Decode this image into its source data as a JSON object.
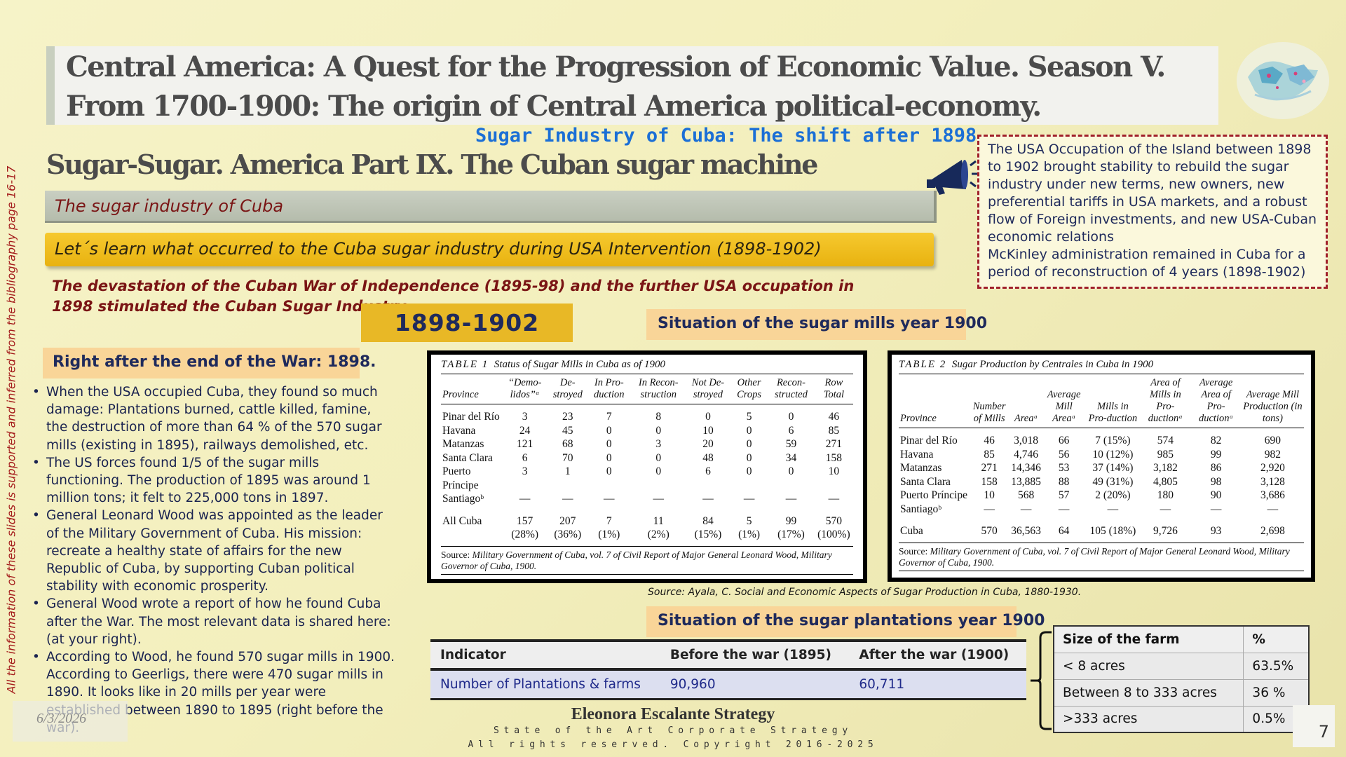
{
  "title": {
    "line1": "Central America:  A Quest for the Progression of  Economic Value. Season V.",
    "line2": "From 1700-1900: The origin of  Central America political-economy."
  },
  "subtitle_blue": "Sugar Industry of Cuba: The shift after 1898",
  "section_title": "Sugar-Sugar. America Part IX. The Cuban sugar machine",
  "topic_bar": "The sugar industry of Cuba",
  "learn_bar": "Let´s learn what occurred to the Cuba sugar industry during USA Intervention (1898-1902)",
  "devastation": "The devastation of the Cuban War of Independence (1895-98) and the further USA occupation in 1898 stimulated the Cuban Sugar Industry.",
  "period_label": "1898-1902",
  "mills_label": "Situation of the sugar mills year 1900",
  "usa_box": {
    "p1": "The USA Occupation of the Island between 1898 to 1902 brought stability to rebuild the sugar industry under new terms, new owners, new preferential tariffs in USA markets, and a robust flow of Foreign investments, and new USA-Cuban economic relations",
    "p2": "McKinley administration remained in Cuba for a period of reconstruction of 4 years (1898-1902)"
  },
  "side_note": "All the information of these slides is supported and inferred from the bibliography page 16-17",
  "war_label": "Right after the end of the War: 1898.",
  "bullets": [
    "When the USA occupied Cuba, they found so much damage: Plantations burned, cattle killed, famine, the destruction of more than 64 % of the 570 sugar mills (existing in 1895), railways demolished, etc.",
    "The US forces found 1/5 of the sugar mills functioning. The production of 1895 was around 1 million tons; it felt to 225,000 tons in 1897.",
    "General Leonard Wood was appointed as the leader of the Military Government of Cuba. His mission: recreate a healthy state of affairs for the new Republic of Cuba, by supporting Cuban political stability with economic prosperity.",
    "General Wood wrote a report of how he found Cuba after the War. The most relevant data is shared here: (at your right).",
    "According to Wood, he found 570 sugar mills in 1900. According to Geerligs, there were 470 sugar mills in 1890. It looks like in 20 mills per year were established between 1890 to 1895 (right before the war)."
  ],
  "table1": {
    "label": "TABLE 1",
    "caption": "Status of Sugar Mills in Cuba as of 1900",
    "headers": [
      "Province",
      "“Demo-lidos”ᵃ",
      "De-stroyed",
      "In Pro-duction",
      "In Recon-struction",
      "Not De-stroyed",
      "Other Crops",
      "Recon-structed",
      "Row Total"
    ],
    "rows": [
      [
        "Pinar del Río",
        "3",
        "23",
        "7",
        "8",
        "0",
        "5",
        "0",
        "46"
      ],
      [
        "Havana",
        "24",
        "45",
        "0",
        "0",
        "10",
        "0",
        "6",
        "85"
      ],
      [
        "Matanzas",
        "121",
        "68",
        "0",
        "3",
        "20",
        "0",
        "59",
        "271"
      ],
      [
        "Santa Clara",
        "6",
        "70",
        "0",
        "0",
        "48",
        "0",
        "34",
        "158"
      ],
      [
        "Puerto",
        "3",
        "1",
        "0",
        "0",
        "6",
        "0",
        "0",
        "10"
      ],
      [
        "Príncipe",
        "",
        "",
        "",
        "",
        "",
        "",
        "",
        ""
      ],
      [
        "Santiagoᵇ",
        "—",
        "—",
        "—",
        "—",
        "—",
        "—",
        "—",
        "—"
      ]
    ],
    "total": [
      "All Cuba",
      "157",
      "207",
      "7",
      "11",
      "84",
      "5",
      "99",
      "570"
    ],
    "total_pct": [
      "",
      "(28%)",
      "(36%)",
      "(1%)",
      "(2%)",
      "(15%)",
      "(1%)",
      "(17%)",
      "(100%)"
    ],
    "source_lead": "Source:",
    "source_text": "Military Government of Cuba, vol. 7 of Civil Report of Major General Leonard Wood, Military Governor of Cuba, 1900."
  },
  "table2": {
    "label": "TABLE 2",
    "caption": "Sugar Production by Centrales in Cuba in 1900",
    "headers": [
      "Province",
      "Number of Mills",
      "Areaᵃ",
      "Average Mill Areaᵃ",
      "Mills in Pro-duction",
      "Area of Mills in Pro-ductionᵃ",
      "Average Area of Pro-ductionᵃ",
      "Average Mill Production (in tons)"
    ],
    "rows": [
      [
        "Pinar del Río",
        "46",
        "3,018",
        "66",
        "7 (15%)",
        "574",
        "82",
        "690"
      ],
      [
        "Havana",
        "85",
        "4,746",
        "56",
        "10 (12%)",
        "985",
        "99",
        "982"
      ],
      [
        "Matanzas",
        "271",
        "14,346",
        "53",
        "37 (14%)",
        "3,182",
        "86",
        "2,920"
      ],
      [
        "Santa Clara",
        "158",
        "13,885",
        "88",
        "49 (31%)",
        "4,805",
        "98",
        "3,128"
      ],
      [
        "Puerto Príncipe",
        "10",
        "568",
        "57",
        "2 (20%)",
        "180",
        "90",
        "3,686"
      ],
      [
        "Santiagoᵇ",
        "—",
        "—",
        "—",
        "—",
        "—",
        "—",
        "—"
      ]
    ],
    "total": [
      "Cuba",
      "570",
      "36,563",
      "64",
      "105 (18%)",
      "9,726",
      "93",
      "2,698"
    ],
    "source_lead": "Source:",
    "source_text": "Military Government of Cuba, vol. 7 of Civil Report of Major General Leonard Wood, Military Governor of Cuba, 1900."
  },
  "source_note": "Source: Ayala, C.  Social and Economic Aspects of Sugar Production in Cuba, 1880-1930.",
  "plant_label": "Situation of the sugar plantations year 1900",
  "plant_table": {
    "headers": [
      "Indicator",
      "Before the war (1895)",
      "After the war (1900)"
    ],
    "row": [
      "Number of Plantations & farms",
      "90,960",
      "60,711"
    ]
  },
  "farm_table": {
    "headers": [
      "Size of the farm",
      "%"
    ],
    "rows": [
      [
        "< 8 acres",
        "63.5%"
      ],
      [
        "Between 8 to 333 acres",
        "36 %"
      ],
      [
        ">333 acres",
        "0.5%"
      ]
    ]
  },
  "date": "6/3/2026",
  "footer": {
    "name": "Eleonora Escalante Strategy",
    "tagline": "State of the Art Corporate Strategy",
    "rights": "All rights reserved. Copyright 2016-2025"
  },
  "page_number": "7"
}
